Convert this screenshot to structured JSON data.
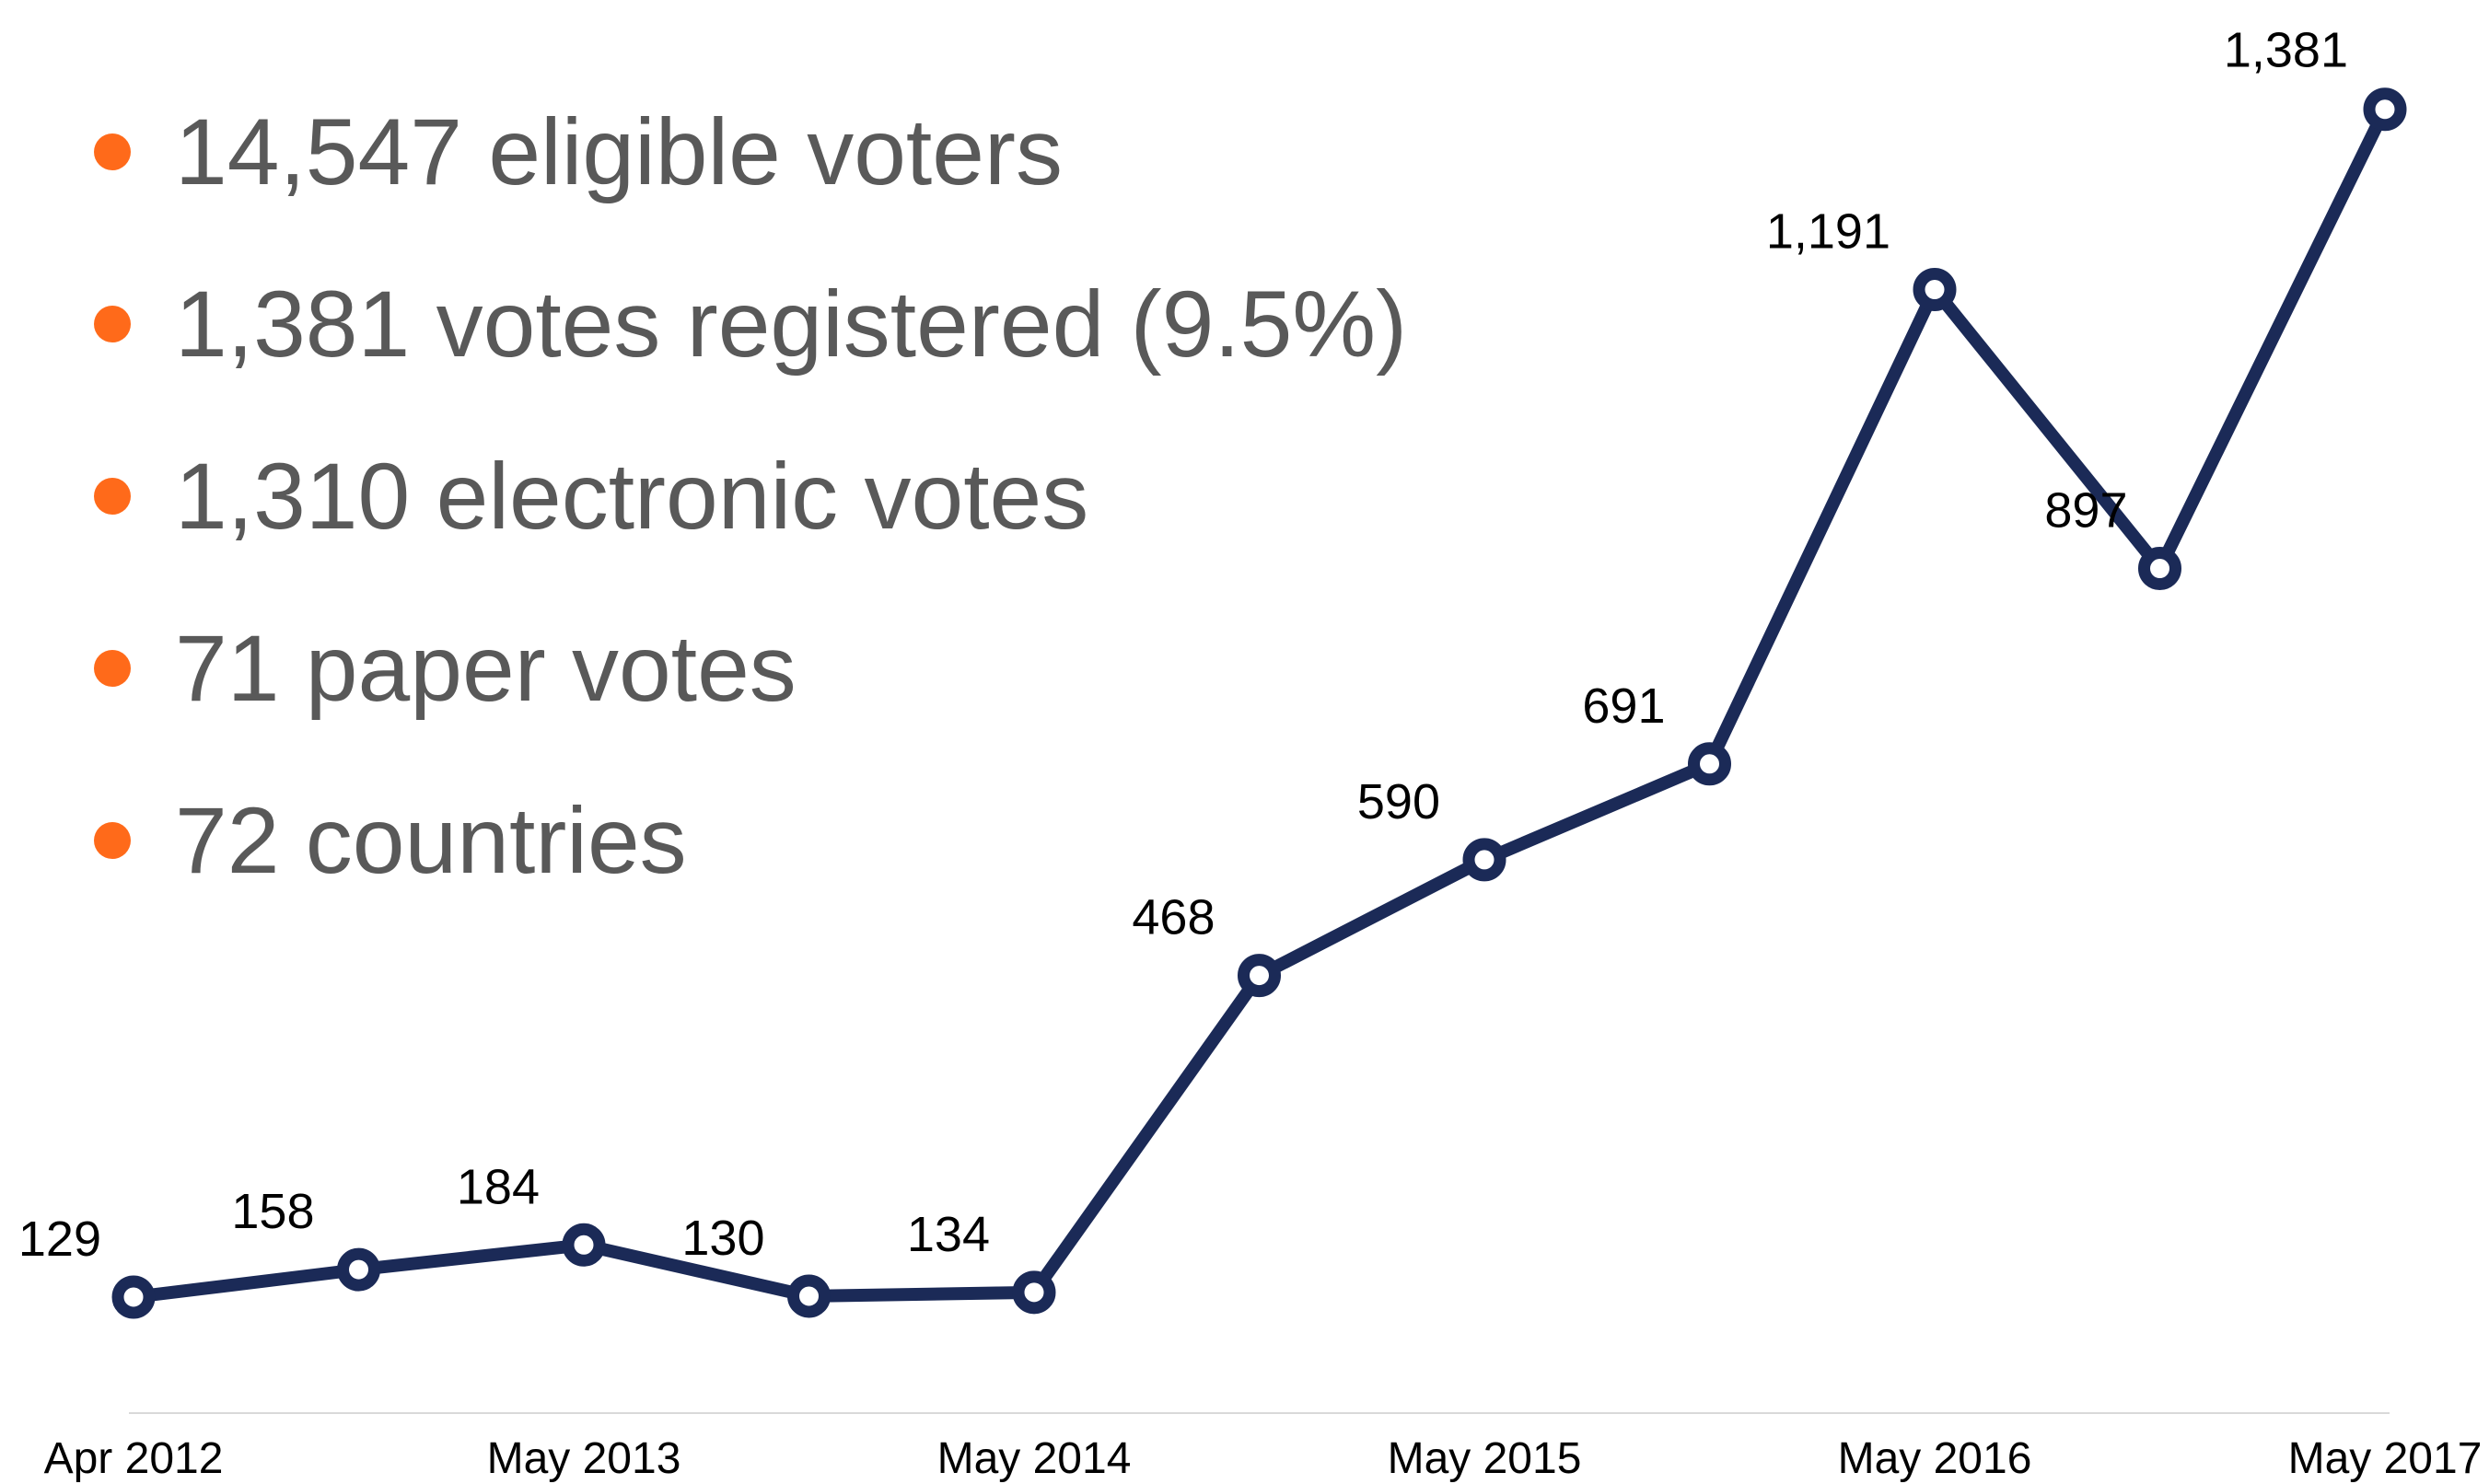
{
  "bullets": [
    "14,547 eligible voters",
    "1,381 votes registered (9.5%)",
    "1,310 electronic votes",
    "71 paper votes",
    "72 countries"
  ],
  "colors": {
    "bullet": "#ff6a1a",
    "bullet_text": "#595959",
    "line": "#1b2a57",
    "axis": "#d9d9d9"
  },
  "chart_data": {
    "type": "line",
    "title": "",
    "xlabel": "",
    "ylabel": "",
    "x": [
      "Apr 2012",
      "",
      "May 2013",
      "",
      "May 2014",
      "",
      "May 2015",
      "",
      "May 2016",
      "",
      "May 2017"
    ],
    "series": [
      {
        "values": [
          129,
          158,
          184,
          130,
          134,
          468,
          590,
          691,
          1191,
          897,
          1381
        ]
      }
    ],
    "data_labels": [
      "129",
      "158",
      "184",
      "130",
      "134",
      "468",
      "590",
      "691",
      "1,191",
      "897",
      "1,381"
    ],
    "ylim": [
      -3,
      1438
    ],
    "grid": false,
    "legend": "none"
  }
}
